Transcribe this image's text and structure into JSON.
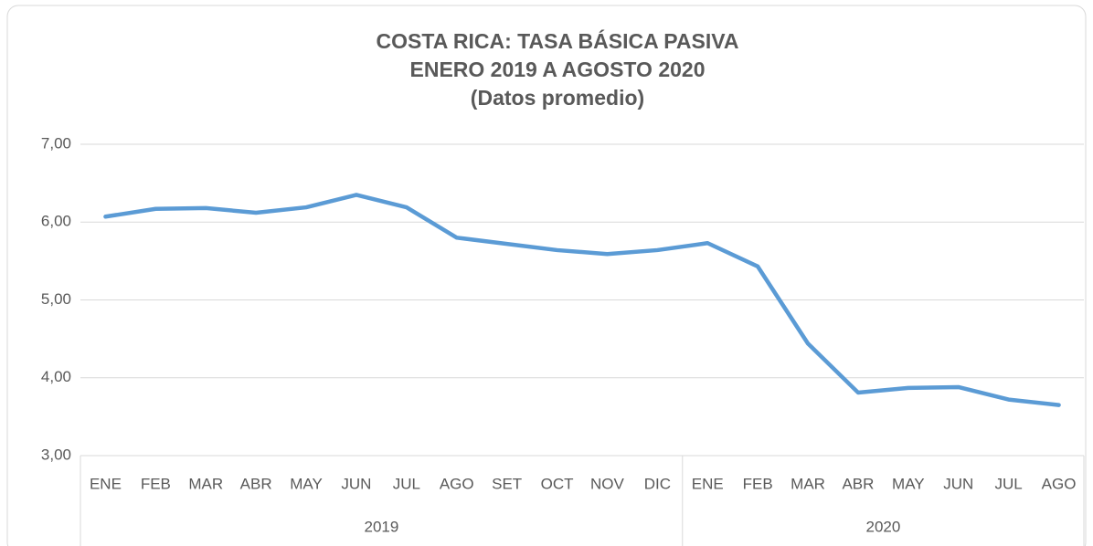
{
  "chart_data": {
    "type": "line",
    "title_lines": [
      "COSTA RICA: TASA BÁSICA PASIVA",
      "ENERO 2019 A AGOSTO 2020",
      "(Datos promedio)"
    ],
    "groups": [
      {
        "name": "2019",
        "categories": [
          "ENE",
          "FEB",
          "MAR",
          "ABR",
          "MAY",
          "JUN",
          "JUL",
          "AGO",
          "SET",
          "OCT",
          "NOV",
          "DIC"
        ]
      },
      {
        "name": "2020",
        "categories": [
          "ENE",
          "FEB",
          "MAR",
          "ABR",
          "MAY",
          "JUN",
          "JUL",
          "AGO"
        ]
      }
    ],
    "values": [
      6.07,
      6.17,
      6.18,
      6.12,
      6.19,
      6.35,
      6.19,
      5.8,
      5.72,
      5.64,
      5.59,
      5.64,
      5.73,
      5.43,
      4.44,
      3.81,
      3.87,
      3.88,
      3.72,
      3.65
    ],
    "color": "#5b9bd5",
    "ylim": [
      3,
      7
    ],
    "yticks": [
      {
        "value": 3,
        "label": "3,00"
      },
      {
        "value": 4,
        "label": "4,00"
      },
      {
        "value": 5,
        "label": "5,00"
      },
      {
        "value": 6,
        "label": "6,00"
      },
      {
        "value": 7,
        "label": "7,00"
      }
    ],
    "grid": true
  }
}
